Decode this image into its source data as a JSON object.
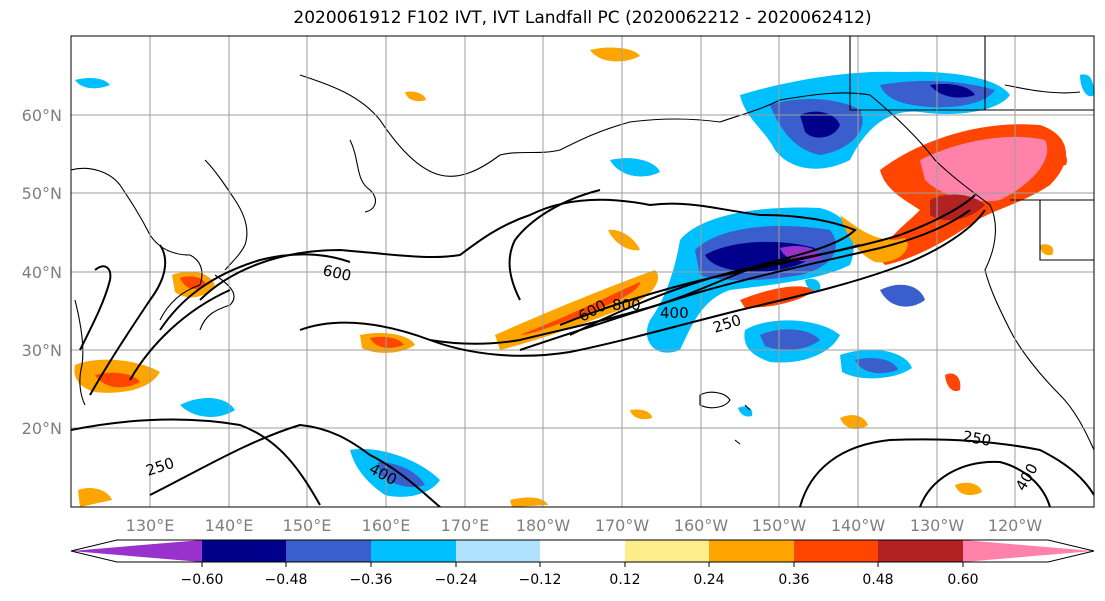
{
  "title": "2020061912 F102 IVT, IVT Landfall PC (2020062212 - 2020062412)",
  "map": {
    "lat_ticks": [
      "60°N",
      "50°N",
      "40°N",
      "30°N",
      "20°N"
    ],
    "lon_ticks": [
      "130°E",
      "140°E",
      "150°E",
      "160°E",
      "170°E",
      "180°W",
      "170°W",
      "160°W",
      "150°W",
      "140°W",
      "130°W",
      "120°W"
    ],
    "contour_labels": [
      "600",
      "600",
      "800",
      "400",
      "250",
      "250",
      "400",
      "250",
      "400"
    ]
  },
  "colorbar": {
    "colors": [
      "#9932cc",
      "#00008b",
      "#3a5fcd",
      "#00bfff",
      "#b0e2ff",
      "#ffffff",
      "#ffec8b",
      "#ffa500",
      "#ff4500",
      "#b22222",
      "#ff82ab"
    ],
    "tick_labels": [
      "−0.60",
      "−0.48",
      "−0.36",
      "−0.24",
      "−0.12",
      "0.12",
      "0.24",
      "0.36",
      "0.48",
      "0.60"
    ]
  },
  "colors": {
    "grid": "#9e9e9e",
    "contour": "#000000",
    "tick_text": "#7f7f7f"
  }
}
